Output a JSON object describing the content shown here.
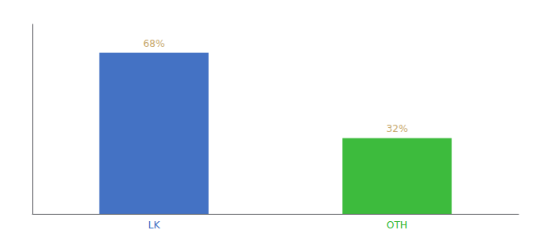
{
  "chart_data": {
    "type": "bar",
    "categories": [
      "LK",
      "OTH"
    ],
    "values": [
      68,
      32
    ],
    "colors": [
      "#4472c4",
      "#3dbb3d"
    ],
    "ylim": [
      0,
      80
    ],
    "data_labels": true,
    "value_labels": [
      "68%",
      "32%"
    ],
    "tick_labels": "x",
    "grid": false
  }
}
